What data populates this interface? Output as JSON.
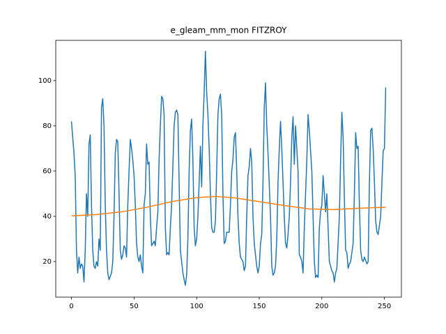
{
  "chart_data": {
    "type": "line",
    "title": "e_gleam_mm_mon FITZROY",
    "xlim": [
      -12.55,
      263.55
    ],
    "ylim": [
      4.3,
      117.8
    ],
    "xticks": [
      0,
      50,
      100,
      150,
      200,
      250
    ],
    "yticks": [
      20,
      40,
      60,
      80,
      100
    ],
    "grid": false,
    "series": [
      {
        "color": "#1f77b4",
        "x": [
          0,
          1,
          2,
          3,
          4,
          5,
          6,
          7,
          8,
          9,
          10,
          11,
          12,
          13,
          14,
          15,
          16,
          17,
          18,
          19,
          20,
          21,
          22,
          23,
          24,
          25,
          26,
          27,
          28,
          29,
          30,
          32,
          33,
          34,
          35,
          36,
          37,
          38,
          39,
          40,
          41,
          42,
          43,
          44,
          45,
          46,
          47,
          48,
          49,
          50,
          51,
          52,
          53,
          54,
          55,
          56,
          57,
          58,
          59,
          60,
          61,
          62,
          63,
          64,
          65,
          66,
          67,
          68,
          69,
          70,
          71,
          72,
          73,
          74,
          75,
          76,
          77,
          78,
          79,
          80,
          81,
          82,
          83,
          84,
          85,
          86,
          87,
          88,
          89,
          90,
          91,
          92,
          93,
          94,
          95,
          96,
          97,
          98,
          99,
          100,
          101,
          102,
          103,
          104,
          105,
          106,
          107,
          108,
          109,
          110,
          111,
          112,
          113,
          114,
          115,
          116,
          117,
          118,
          119,
          120,
          121,
          122,
          123,
          124,
          126,
          127,
          128,
          129,
          130,
          131,
          132,
          133,
          134,
          135,
          137,
          138,
          139,
          140,
          141,
          142,
          143,
          144,
          145,
          146,
          148,
          149,
          150,
          151,
          152,
          153,
          154,
          155,
          156,
          157,
          159,
          160,
          161,
          162,
          163,
          164,
          165,
          166,
          167,
          168,
          170,
          171,
          172,
          173,
          174,
          175,
          176,
          177,
          178,
          179,
          181,
          182,
          183,
          184,
          185,
          186,
          187,
          188,
          189,
          190,
          192,
          193,
          194,
          195,
          196,
          197,
          198,
          199,
          200,
          201,
          203,
          204,
          205,
          206,
          207,
          208,
          209,
          210,
          211,
          212,
          214,
          215,
          216,
          217,
          218,
          219,
          220,
          221,
          222,
          223,
          225,
          226,
          227,
          228,
          229,
          230,
          231,
          232,
          233,
          234,
          236,
          237,
          238,
          239,
          240,
          241,
          242,
          243,
          244,
          245,
          247,
          248,
          249,
          250,
          251
        ],
        "values": [
          82,
          75,
          68,
          58,
          25,
          15,
          22,
          17,
          19,
          18,
          11,
          25,
          50,
          40,
          72,
          76,
          45,
          25,
          18,
          17,
          20,
          18,
          30,
          25,
          88,
          92,
          80,
          45,
          25,
          15,
          12,
          15,
          20,
          40,
          68,
          74,
          73,
          50,
          25,
          21,
          23,
          27,
          26,
          22,
          45,
          60,
          74,
          70,
          65,
          58,
          45,
          28,
          22,
          20,
          23,
          18,
          15,
          45,
          50,
          72,
          63,
          64,
          40,
          27,
          28,
          29,
          27,
          35,
          42,
          65,
          80,
          93,
          92,
          85,
          35,
          23,
          24,
          23,
          35,
          45,
          62,
          80,
          86,
          87,
          85,
          55,
          25,
          20,
          15,
          12,
          9.5,
          14,
          30,
          60,
          78,
          83,
          65,
          35,
          27,
          30,
          40,
          55,
          71,
          53,
          80,
          95,
          113,
          95,
          85,
          70,
          50,
          35,
          33,
          33,
          38,
          60,
          85,
          92,
          94,
          85,
          50,
          28,
          29,
          33,
          33,
          45,
          60,
          65,
          75,
          77,
          60,
          40,
          28,
          22,
          20,
          16,
          18,
          40,
          58,
          62,
          70,
          64,
          40,
          28,
          18,
          15,
          18,
          28,
          32,
          55,
          88,
          99,
          80,
          68,
          40,
          18,
          14,
          15,
          18,
          30,
          55,
          70,
          82,
          70,
          40,
          28,
          26,
          32,
          40,
          55,
          75,
          84,
          63,
          80,
          60,
          23,
          22,
          20,
          15,
          35,
          50,
          65,
          85,
          78,
          60,
          40,
          20,
          13,
          14,
          13,
          35,
          42,
          45,
          58,
          42,
          50,
          35,
          20,
          18,
          16,
          15,
          11,
          15,
          17,
          40,
          65,
          86,
          75,
          48,
          25,
          24,
          17,
          19,
          20,
          28,
          50,
          77,
          70,
          71,
          45,
          25,
          21,
          20,
          22,
          19,
          20,
          55,
          78,
          79,
          70,
          55,
          38,
          33,
          32,
          40,
          55,
          69,
          70,
          97
        ]
      },
      {
        "color": "#ff7f0e",
        "x": [
          0,
          20,
          40,
          60,
          80,
          100,
          115,
          130,
          150,
          170,
          190,
          210,
          230,
          251
        ],
        "values": [
          40.2,
          40.8,
          42,
          44,
          46.5,
          48.3,
          48.8,
          48.2,
          46.5,
          44.8,
          43.3,
          43,
          43.6,
          44
        ]
      }
    ]
  }
}
